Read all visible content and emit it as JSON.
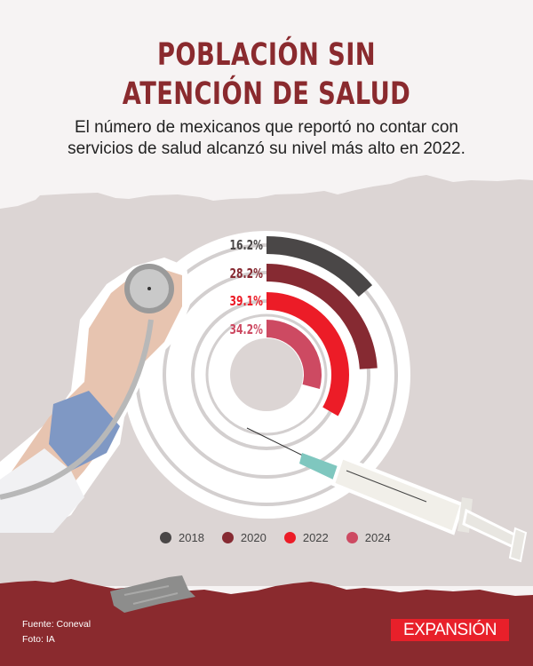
{
  "header": {
    "title_line1": "POBLACIÓN SIN",
    "title_line2": "ATENCIÓN DE SALUD",
    "subtitle_line1": "El número de mexicanos que reportó no contar con",
    "subtitle_line2": "servicios de salud alcanzó su nivel más alto en 2022."
  },
  "colors": {
    "title": "#8a2a2e",
    "top_bg": "#f6f3f3",
    "mid_bg": "#dcd5d4",
    "footer_bg": "#8a2a2e",
    "logo_bg": "#e8202a"
  },
  "chart_data": {
    "type": "radial-bar",
    "title": "Población sin atención de salud",
    "unit": "%",
    "categories": [
      "2018",
      "2020",
      "2022",
      "2024"
    ],
    "values": [
      16.2,
      28.2,
      39.1,
      34.2
    ],
    "labels": [
      "16.2%",
      "28.2%",
      "39.1%",
      "34.2%"
    ],
    "colors": [
      "#4a4747",
      "#862a32",
      "#ec1c27",
      "#cd4a62"
    ],
    "legend_position": "bottom",
    "ring_order": "outer-to-inner"
  },
  "legend": [
    {
      "label": "2018",
      "color": "#4a4747"
    },
    {
      "label": "2020",
      "color": "#862a32"
    },
    {
      "label": "2022",
      "color": "#ec1c27"
    },
    {
      "label": "2024",
      "color": "#cd4a62"
    }
  ],
  "footer": {
    "source": "Fuente: Coneval",
    "photo": "Foto: IA",
    "logo": "EXPANSIÓN"
  }
}
